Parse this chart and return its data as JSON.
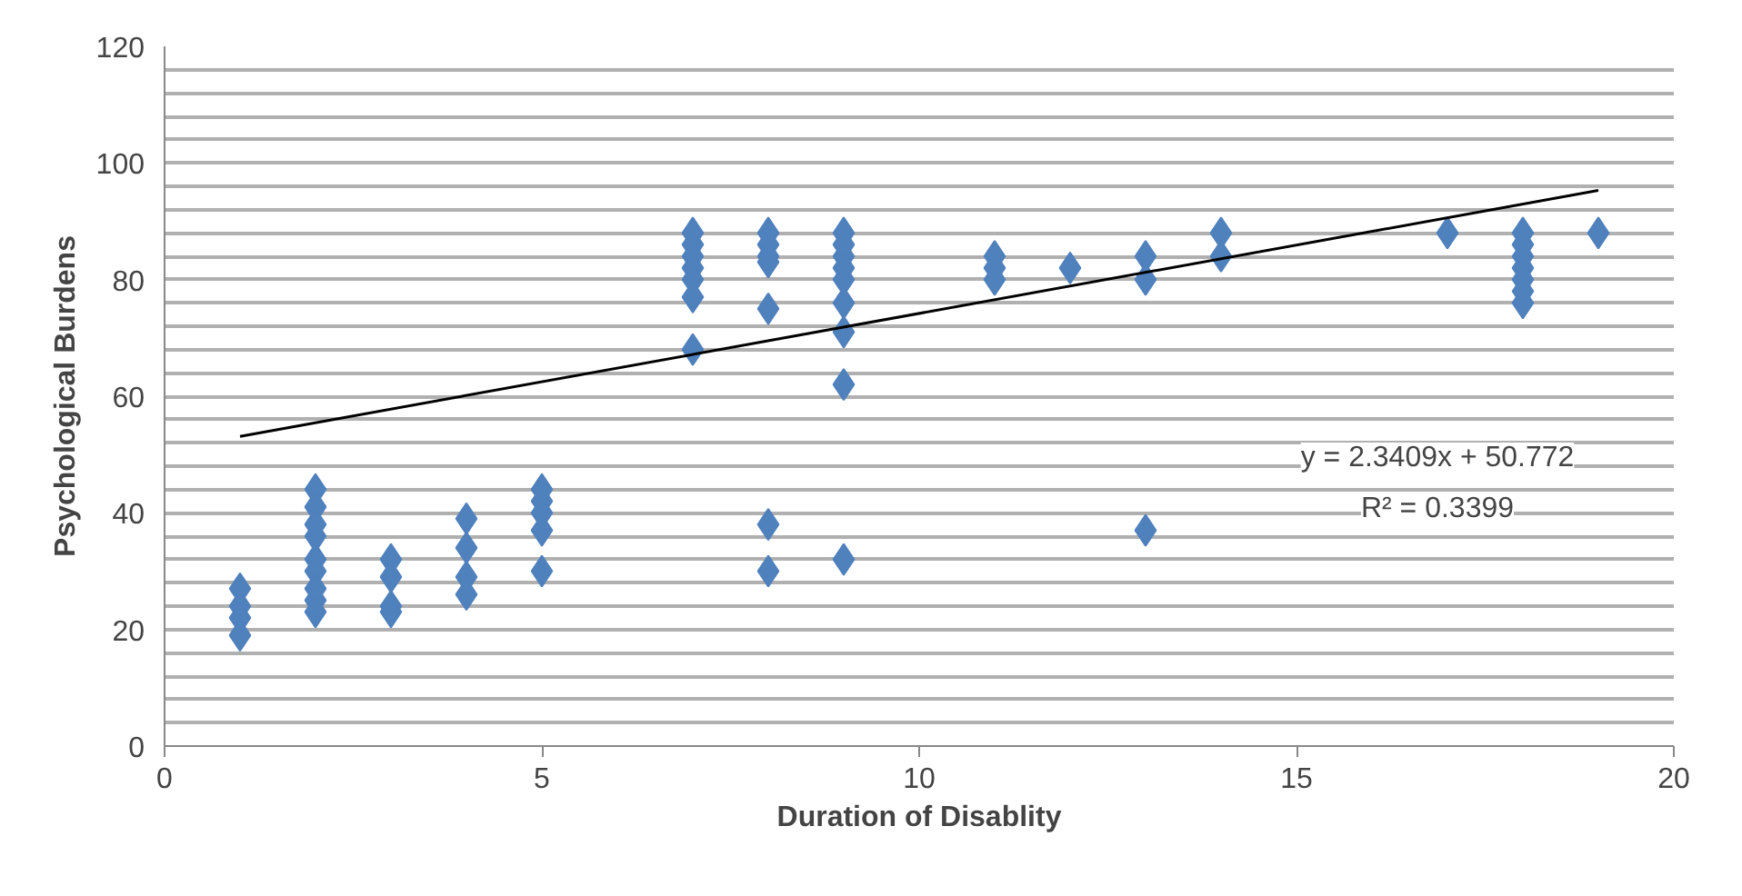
{
  "chart_data": {
    "type": "scatter",
    "xlabel": "Duration of Disablity",
    "ylabel": "Psychological Burdens",
    "xlim": [
      0,
      20
    ],
    "xticks": [
      0,
      5,
      10,
      15,
      20
    ],
    "ylim": [
      0,
      120
    ],
    "yticks": [
      0,
      {
        "value": 4,
        "label": null
      },
      {
        "value": 8,
        "label": null
      },
      {
        "value": 12,
        "label": null
      },
      {
        "value": 16,
        "label": null
      },
      20,
      {
        "value": 24,
        "label": null
      },
      {
        "value": 28,
        "label": null
      },
      {
        "value": 32,
        "label": null
      },
      {
        "value": 36,
        "label": null
      },
      40,
      {
        "value": 44,
        "label": null
      },
      {
        "value": 48,
        "label": null
      },
      {
        "value": 52,
        "label": null
      },
      {
        "value": 56,
        "label": null
      },
      60,
      {
        "value": 64,
        "label": null
      },
      {
        "value": 68,
        "label": null
      },
      {
        "value": 72,
        "label": null
      },
      {
        "value": 76,
        "label": null
      },
      80,
      {
        "value": 84,
        "label": null
      },
      {
        "value": 88,
        "label": null
      },
      {
        "value": 92,
        "label": null
      },
      {
        "value": 96,
        "label": null
      },
      100,
      {
        "value": 104,
        "label": null
      },
      {
        "value": 108,
        "label": null
      },
      {
        "value": 112,
        "label": null
      },
      {
        "value": 116,
        "label": null
      },
      120
    ],
    "grid": "y",
    "marker": "diamond",
    "series": [
      {
        "color": "#4f81bd",
        "x": [
          1,
          1,
          1,
          1,
          2,
          2,
          2,
          2,
          2,
          2,
          2,
          2,
          2,
          3,
          3,
          3,
          3,
          4,
          4,
          4,
          4,
          5,
          5,
          5,
          5,
          5,
          7,
          7,
          7,
          7,
          7,
          7,
          7,
          8,
          8,
          8,
          8,
          8,
          8,
          8,
          9,
          9,
          9,
          9,
          9,
          9,
          9,
          9,
          9,
          11,
          11,
          11,
          12,
          13,
          13,
          13,
          14,
          14,
          17,
          18,
          18,
          18,
          18,
          18,
          18,
          18,
          19
        ],
        "values": [
          27,
          24,
          22,
          19,
          44,
          41,
          38,
          36,
          32,
          30,
          27,
          25,
          23,
          32,
          29,
          24,
          23,
          39,
          34,
          29,
          26,
          44,
          42,
          40,
          37,
          30,
          88,
          86,
          84,
          82,
          80,
          77,
          68,
          88,
          86,
          84,
          83,
          75,
          38,
          30,
          88,
          86,
          84,
          82,
          80,
          76,
          71,
          62,
          32,
          84,
          82,
          80,
          82,
          84,
          80,
          37,
          88,
          84,
          88,
          88,
          86,
          84,
          82,
          80,
          78,
          76,
          88
        ]
      },
      {
        "type": "line",
        "color": "#000000",
        "marker": "none",
        "line_style": "solid",
        "x": [
          1,
          19
        ],
        "values": [
          53.1,
          95.3
        ]
      }
    ],
    "annotations": [
      "y = 2.3409x + 50.772",
      "R² = 0.3399"
    ]
  }
}
